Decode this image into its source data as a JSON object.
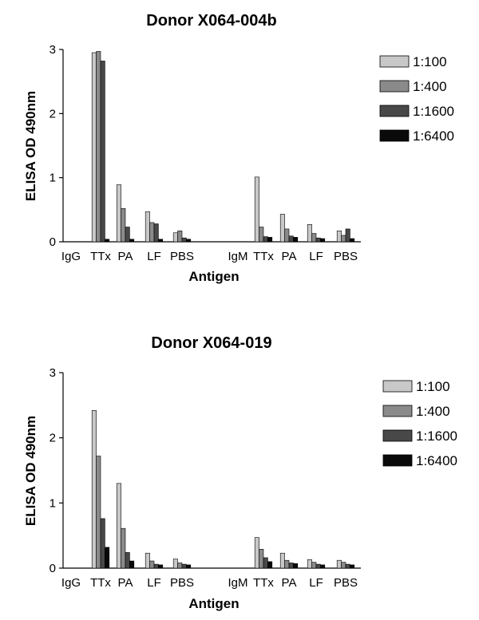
{
  "colors": {
    "series": [
      "#c8c8c8",
      "#8a8a8a",
      "#484848",
      "#0a0a0a"
    ]
  },
  "chart_data": [
    {
      "type": "bar",
      "title": "Donor X064-004b",
      "xlabel": "Antigen",
      "ylabel": "ELISA OD 490nm",
      "ylim": [
        0,
        3
      ],
      "yticks": [
        0,
        1,
        2,
        3
      ],
      "categories": [
        "IgG",
        "TTx",
        "PA",
        "LF",
        "PBS",
        "IgM",
        "TTx",
        "PA",
        "LF",
        "PBS"
      ],
      "legend": "right",
      "series": [
        {
          "name": "1:100",
          "values": [
            0,
            2.95,
            0.89,
            0.47,
            0.14,
            0,
            1.01,
            0.43,
            0.27,
            0.17
          ]
        },
        {
          "name": "1:400",
          "values": [
            0,
            2.97,
            0.52,
            0.3,
            0.17,
            0,
            0.23,
            0.2,
            0.13,
            0.1
          ]
        },
        {
          "name": "1:1600",
          "values": [
            0,
            2.82,
            0.23,
            0.28,
            0.06,
            0,
            0.08,
            0.09,
            0.06,
            0.2
          ]
        },
        {
          "name": "1:6400",
          "values": [
            0,
            0.04,
            0.04,
            0.04,
            0.04,
            0,
            0.07,
            0.07,
            0.05,
            0.05
          ]
        }
      ]
    },
    {
      "type": "bar",
      "title": "Donor X064-019",
      "xlabel": "Antigen",
      "ylabel": "ELISA OD 490nm",
      "ylim": [
        0,
        3
      ],
      "yticks": [
        0,
        1,
        2,
        3
      ],
      "categories": [
        "IgG",
        "TTx",
        "PA",
        "LF",
        "PBS",
        "IgM",
        "TTx",
        "PA",
        "LF",
        "PBS"
      ],
      "legend": "right",
      "series": [
        {
          "name": "1:100",
          "values": [
            0,
            2.42,
            1.3,
            0.23,
            0.14,
            0,
            0.47,
            0.23,
            0.13,
            0.12
          ]
        },
        {
          "name": "1:400",
          "values": [
            0,
            1.72,
            0.61,
            0.11,
            0.08,
            0,
            0.29,
            0.12,
            0.09,
            0.09
          ]
        },
        {
          "name": "1:1600",
          "values": [
            0,
            0.76,
            0.24,
            0.06,
            0.06,
            0,
            0.16,
            0.08,
            0.06,
            0.06
          ]
        },
        {
          "name": "1:6400",
          "values": [
            0,
            0.32,
            0.11,
            0.05,
            0.05,
            0,
            0.1,
            0.07,
            0.05,
            0.05
          ]
        }
      ]
    }
  ]
}
